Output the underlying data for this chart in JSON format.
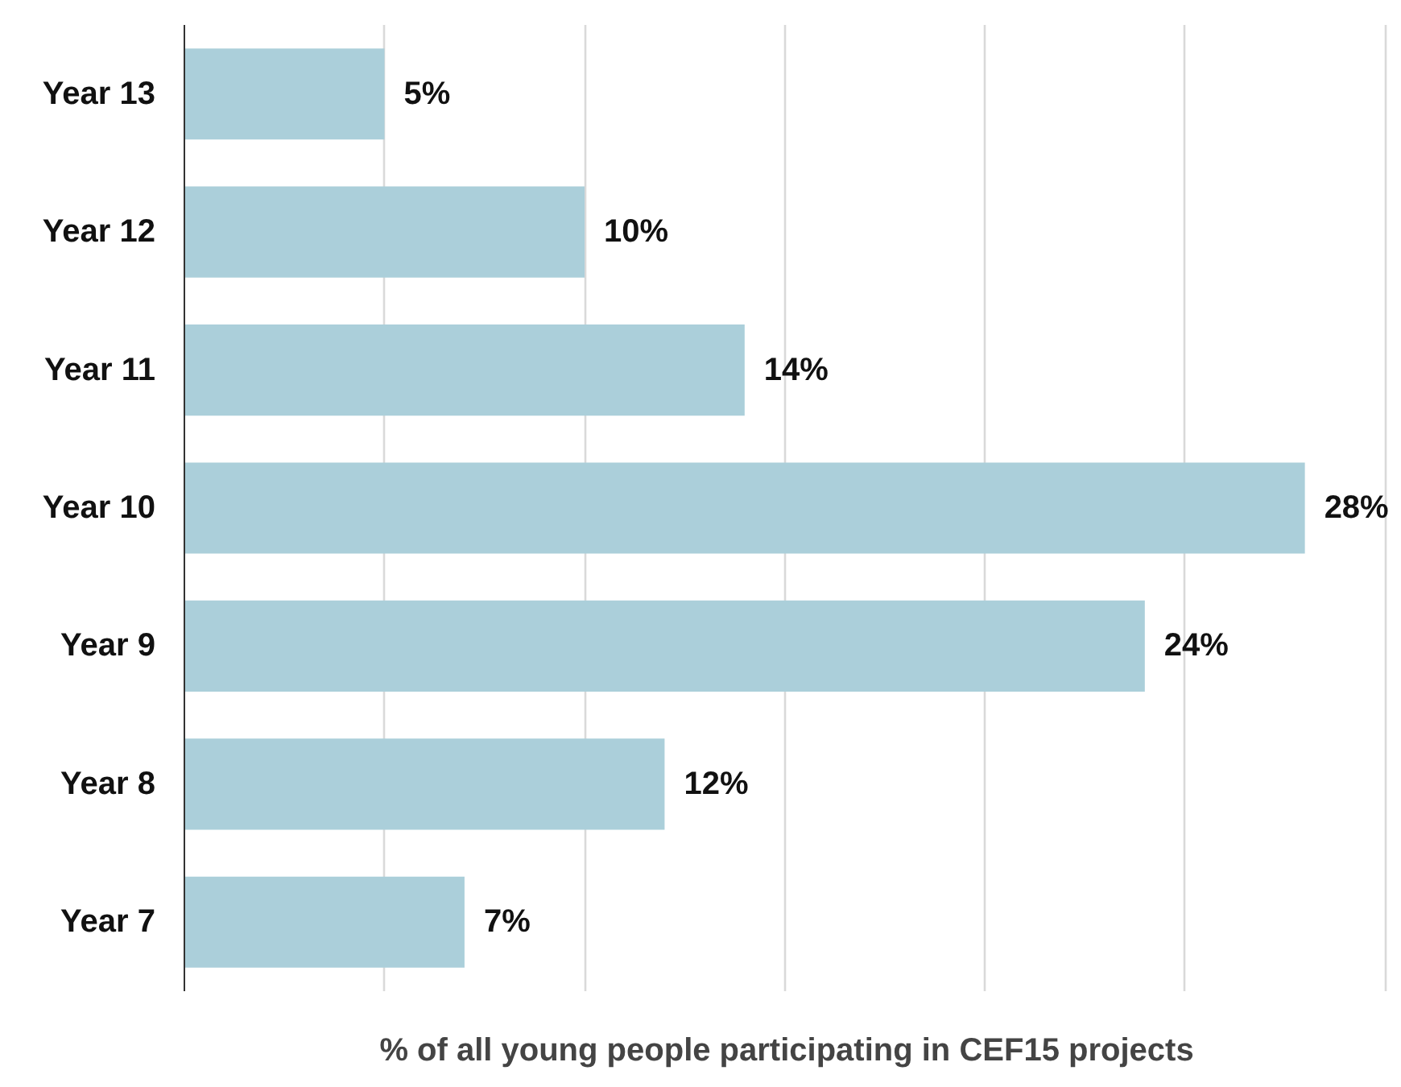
{
  "chart_data": {
    "type": "bar",
    "orientation": "horizontal",
    "xlabel": "% of all young people participating in CEF15 projects",
    "categories": [
      "Year 13",
      "Year 12",
      "Year 11",
      "Year 10",
      "Year 9",
      "Year 8",
      "Year 7"
    ],
    "values": [
      5,
      10,
      14,
      28,
      24,
      12,
      7
    ],
    "value_labels": [
      "5%",
      "10%",
      "14%",
      "28%",
      "24%",
      "12%",
      "7%"
    ],
    "color": "#abcfda",
    "grid": "x",
    "tick_labels": "y"
  }
}
